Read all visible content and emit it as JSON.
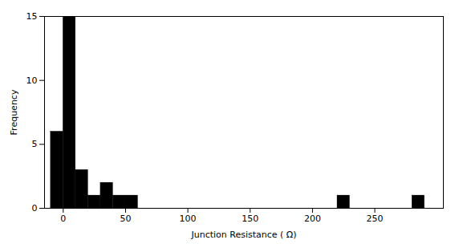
{
  "chart_data": {
    "type": "histogram",
    "x": [
      -10,
      0,
      10,
      20,
      30,
      40,
      50,
      220,
      280
    ],
    "values": [
      6,
      15,
      3,
      1,
      2,
      1,
      1,
      1,
      1
    ],
    "bin_width": 10,
    "color": "#000000",
    "xlabel": "Junction Resistance ( Ω)",
    "ylabel": "Frequency",
    "xlim": [
      -15,
      305
    ],
    "ylim": [
      0,
      15
    ],
    "xticks": [
      0,
      50,
      100,
      150,
      200,
      250
    ],
    "yticks": [
      0,
      5,
      10,
      15
    ],
    "grid": false
  }
}
